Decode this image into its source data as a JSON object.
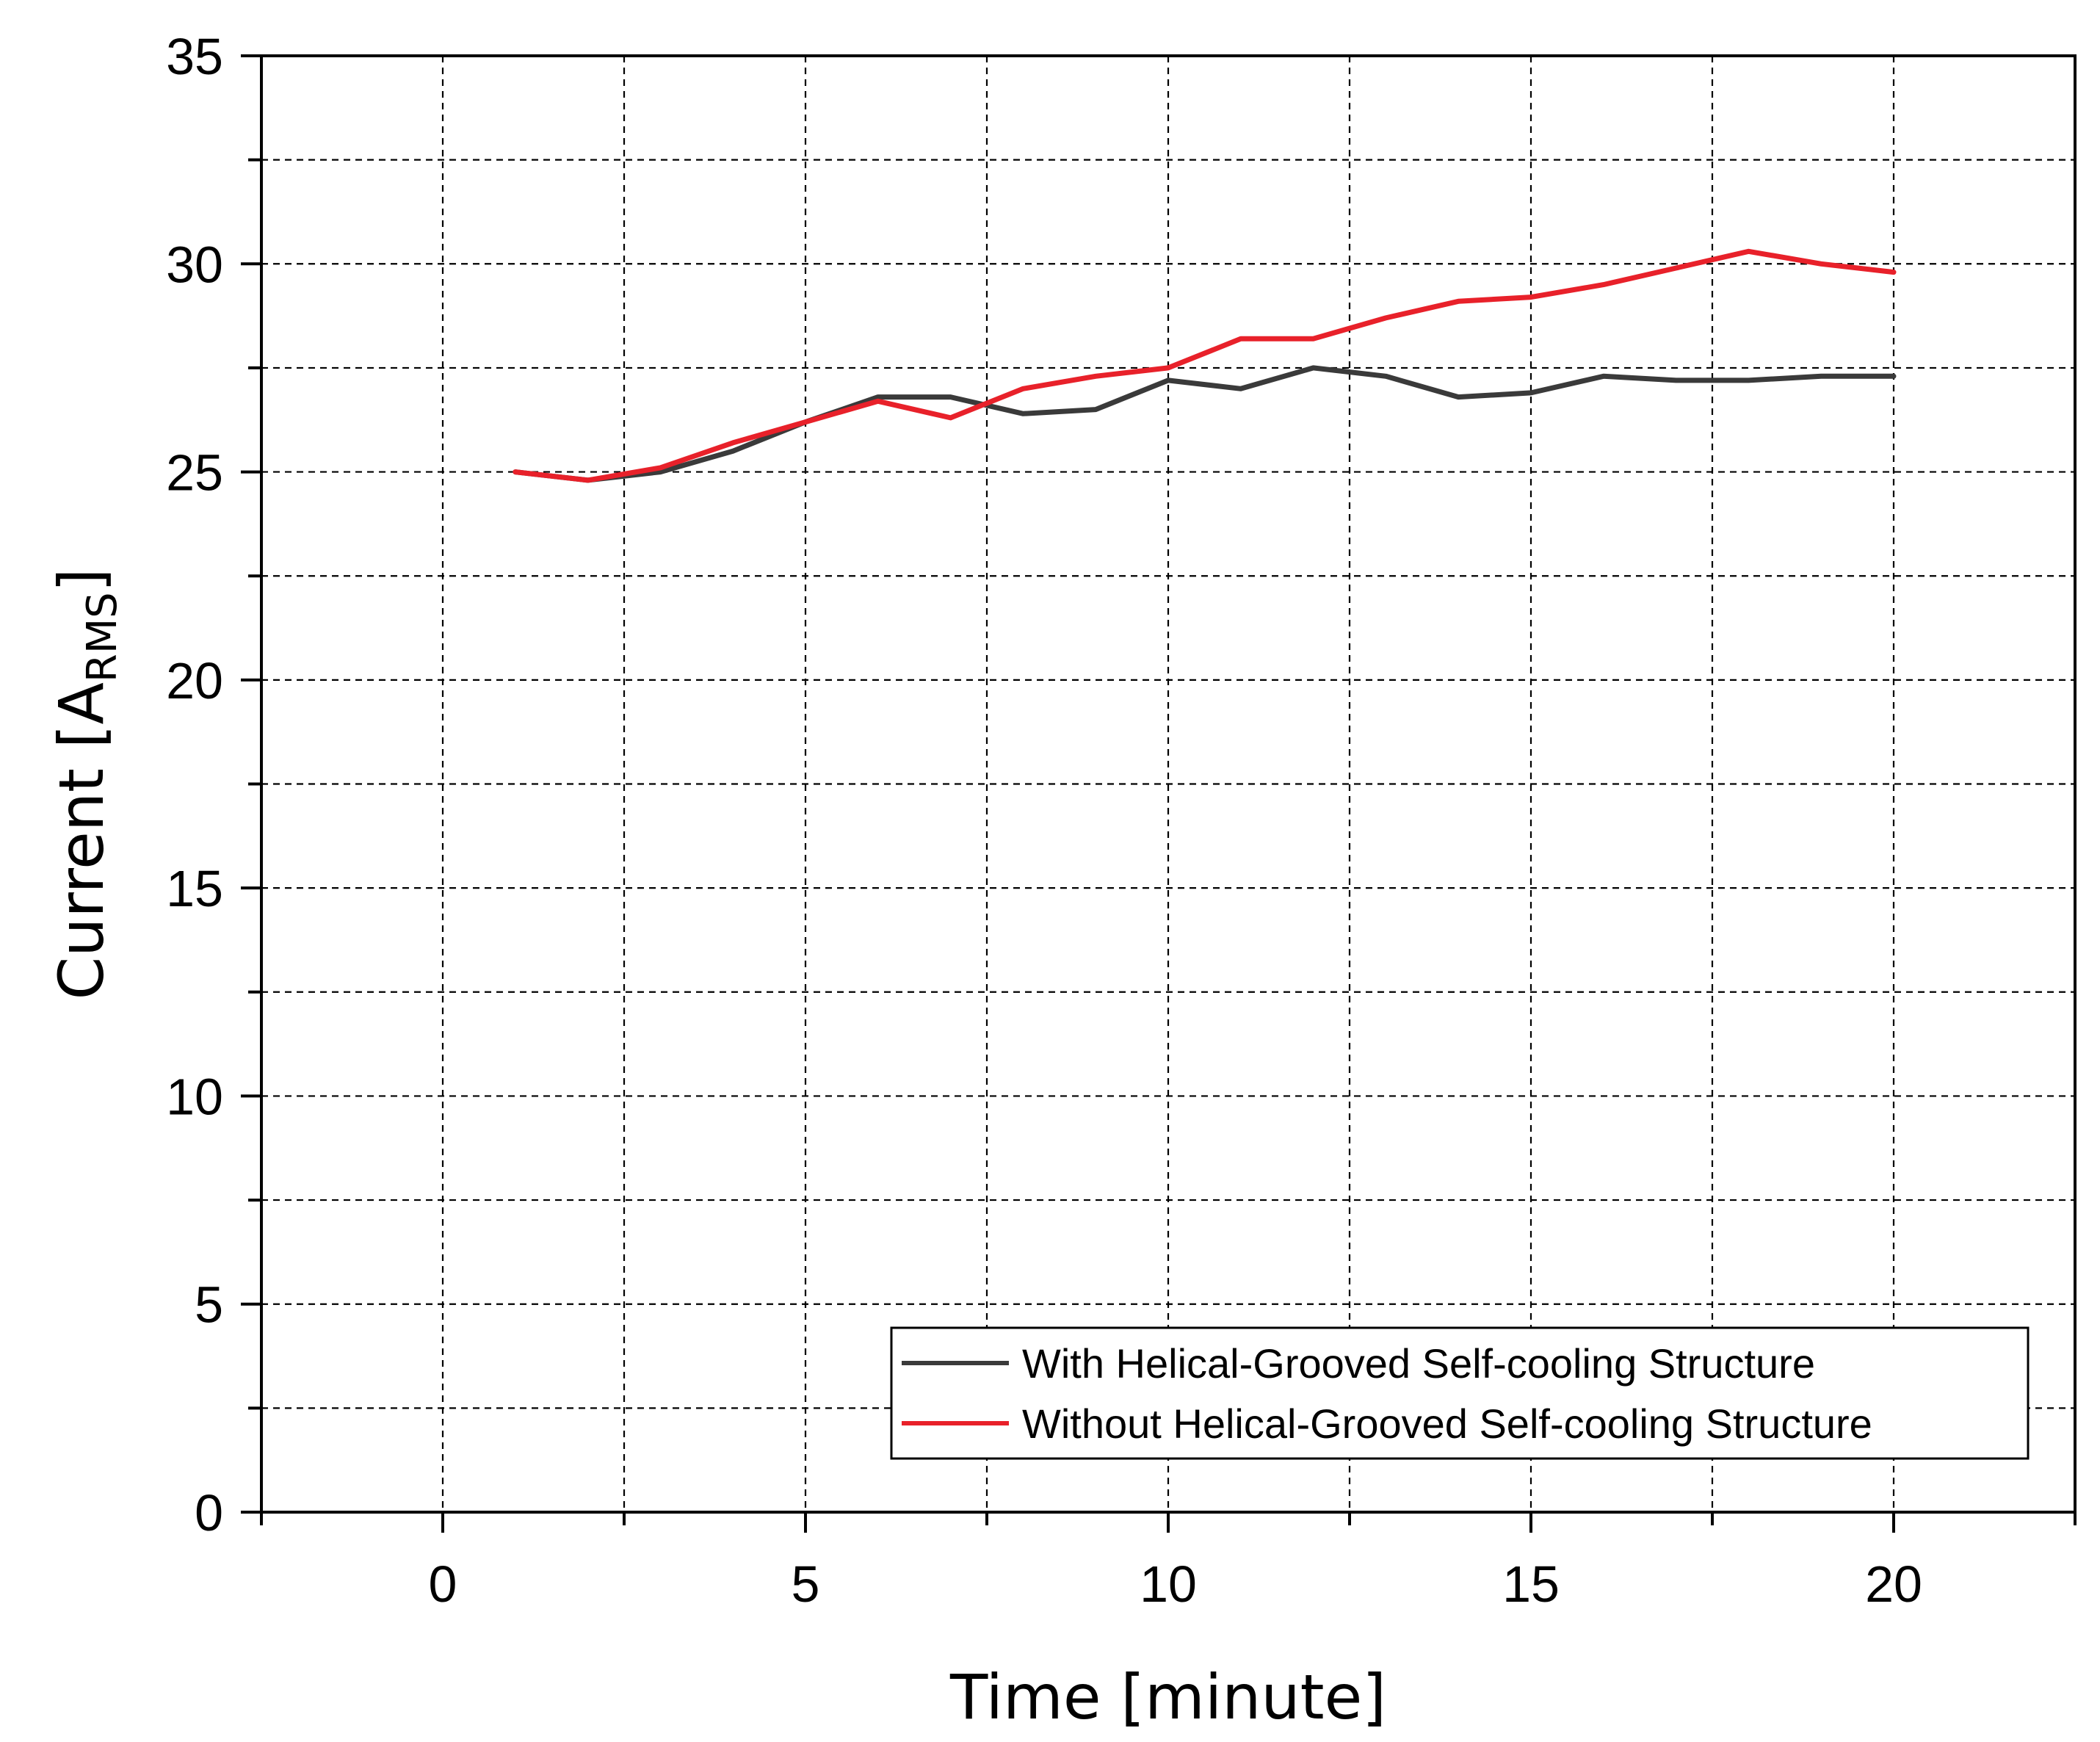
{
  "chart_data": {
    "type": "line",
    "xlabel": "Time [minute]",
    "ylabel": {
      "main": "Current [A",
      "subscript": "RMS",
      "suffix": "]"
    },
    "xlim": [
      -2.5,
      22.5
    ],
    "ylim": [
      0,
      35
    ],
    "x_ticks": [
      0,
      5,
      10,
      15,
      20
    ],
    "y_ticks": [
      0,
      5,
      10,
      15,
      20,
      25,
      30,
      35
    ],
    "grid": true,
    "grid_style": "dashed",
    "legend_position": "bottom-right",
    "series": [
      {
        "name": "With Helical-Grooved Self-cooling Structure",
        "color": "#3a3a3a",
        "x": [
          1,
          2,
          3,
          4,
          5,
          6,
          7,
          8,
          9,
          10,
          11,
          12,
          13,
          14,
          15,
          16,
          17,
          18,
          19,
          20
        ],
        "y": [
          25.0,
          24.8,
          25.0,
          25.5,
          26.2,
          26.8,
          26.8,
          26.4,
          26.5,
          27.2,
          27.0,
          27.5,
          27.3,
          26.8,
          26.9,
          27.3,
          27.2,
          27.2,
          27.3,
          27.3
        ]
      },
      {
        "name": "Without Helical-Grooved Self-cooling Structure",
        "color": "#e8212a",
        "x": [
          1,
          2,
          3,
          4,
          5,
          6,
          7,
          8,
          9,
          10,
          11,
          12,
          13,
          14,
          15,
          16,
          17,
          18,
          19,
          20
        ],
        "y": [
          25.0,
          24.8,
          25.1,
          25.7,
          26.2,
          26.7,
          26.3,
          27.0,
          27.3,
          27.5,
          28.2,
          28.2,
          28.7,
          29.1,
          29.2,
          29.5,
          29.9,
          30.3,
          30.0,
          29.8
        ]
      }
    ]
  }
}
